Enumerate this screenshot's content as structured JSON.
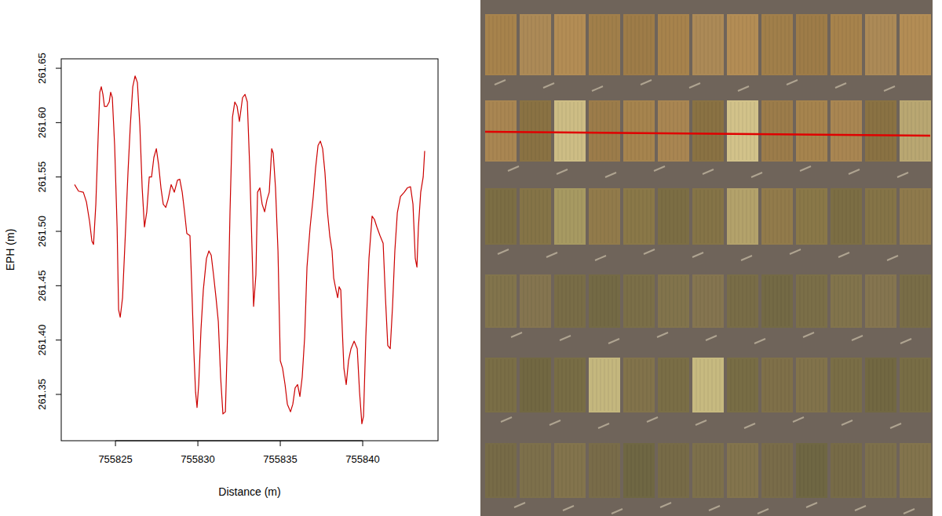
{
  "chart_data": {
    "type": "line",
    "x_label": "Distance (m)",
    "y_label": "EPH (m)",
    "color": "#cc0000",
    "xlim": [
      755821.71,
      755844.57
    ],
    "ylim": [
      261.3074,
      261.6587
    ],
    "xticks": [
      755825,
      755830,
      755835,
      755840
    ],
    "yticks": [
      261.35,
      {
        "value": 261.4,
        "label": "261.40"
      },
      261.45,
      {
        "value": 261.5,
        "label": "261.50"
      },
      261.55,
      {
        "value": 261.6,
        "label": "261.60"
      },
      261.65
    ],
    "x": [
      755822.52,
      755822.76,
      755823.05,
      755823.24,
      755823.43,
      755823.57,
      755823.67,
      755823.81,
      755823.95,
      755824.05,
      755824.14,
      755824.24,
      755824.33,
      755824.48,
      755824.62,
      755824.71,
      755824.81,
      755824.95,
      755825.1,
      755825.19,
      755825.29,
      755825.43,
      755825.62,
      755825.76,
      755825.9,
      755826.05,
      755826.19,
      755826.33,
      755826.48,
      755826.62,
      755826.76,
      755826.9,
      755827.05,
      755827.19,
      755827.33,
      755827.48,
      755827.62,
      755827.76,
      755827.9,
      755828.05,
      755828.19,
      755828.38,
      755828.57,
      755828.76,
      755828.9,
      755829.05,
      755829.19,
      755829.33,
      755829.52,
      755829.62,
      755829.76,
      755829.86,
      755829.95,
      755830.05,
      755830.19,
      755830.33,
      755830.52,
      755830.67,
      755830.81,
      755830.95,
      755831.1,
      755831.24,
      755831.38,
      755831.52,
      755831.67,
      755831.81,
      755831.95,
      755832.1,
      755832.24,
      755832.38,
      755832.52,
      755832.71,
      755832.86,
      755833.0,
      755833.14,
      755833.29,
      755833.38,
      755833.52,
      755833.62,
      755833.76,
      755833.9,
      755834.05,
      755834.19,
      755834.33,
      755834.48,
      755834.57,
      755834.71,
      755834.86,
      755835.0,
      755835.14,
      755835.29,
      755835.43,
      755835.62,
      755835.76,
      755835.9,
      755836.05,
      755836.19,
      755836.33,
      755836.48,
      755836.62,
      755836.81,
      755837.0,
      755837.14,
      755837.29,
      755837.43,
      755837.57,
      755837.71,
      755837.86,
      755838.0,
      755838.14,
      755838.24,
      755838.38,
      755838.48,
      755838.57,
      755838.67,
      755838.76,
      755838.86,
      755839.0,
      755839.14,
      755839.29,
      755839.48,
      755839.67,
      755839.81,
      755839.95,
      755840.05,
      755840.19,
      755840.38,
      755840.57,
      755840.71,
      755840.86,
      755841.05,
      755841.24,
      755841.38,
      755841.52,
      755841.67,
      755841.81,
      755841.95,
      755842.1,
      755842.29,
      755842.52,
      755842.71,
      755842.9,
      755843.05,
      755843.19,
      755843.29,
      755843.38,
      755843.52,
      755843.67,
      755843.76
    ],
    "values": [
      261.543,
      261.537,
      261.536,
      261.527,
      261.509,
      261.491,
      261.488,
      261.525,
      261.587,
      261.628,
      261.633,
      261.626,
      261.615,
      261.615,
      261.619,
      261.628,
      261.623,
      261.579,
      261.504,
      261.428,
      261.421,
      261.439,
      261.504,
      261.554,
      261.597,
      261.633,
      261.643,
      261.637,
      261.597,
      261.54,
      261.504,
      261.518,
      261.55,
      261.55,
      261.568,
      261.576,
      261.561,
      261.54,
      261.525,
      261.522,
      261.529,
      261.543,
      261.536,
      261.547,
      261.548,
      261.536,
      261.518,
      261.498,
      261.496,
      261.453,
      261.388,
      261.352,
      261.338,
      261.359,
      261.41,
      261.446,
      261.475,
      261.482,
      261.478,
      261.46,
      261.439,
      261.417,
      261.366,
      261.332,
      261.334,
      261.41,
      261.518,
      261.605,
      261.619,
      261.615,
      261.601,
      261.623,
      261.626,
      261.619,
      261.561,
      261.482,
      261.431,
      261.46,
      261.536,
      261.54,
      261.525,
      261.518,
      261.529,
      261.536,
      261.576,
      261.572,
      261.54,
      261.482,
      261.381,
      261.374,
      261.359,
      261.341,
      261.334,
      261.341,
      261.356,
      261.359,
      261.348,
      261.366,
      261.403,
      261.467,
      261.504,
      261.532,
      261.558,
      261.579,
      261.583,
      261.576,
      261.554,
      261.518,
      261.496,
      261.482,
      261.457,
      261.446,
      261.439,
      261.449,
      261.446,
      261.41,
      261.374,
      261.359,
      261.381,
      261.392,
      261.399,
      261.392,
      261.352,
      261.323,
      261.33,
      261.403,
      261.475,
      261.514,
      261.511,
      261.504,
      261.496,
      261.489,
      261.439,
      261.395,
      261.392,
      261.431,
      261.482,
      261.517,
      261.532,
      261.536,
      261.54,
      261.541,
      261.525,
      261.475,
      261.467,
      261.504,
      261.536,
      261.55,
      261.574
    ]
  }
}
